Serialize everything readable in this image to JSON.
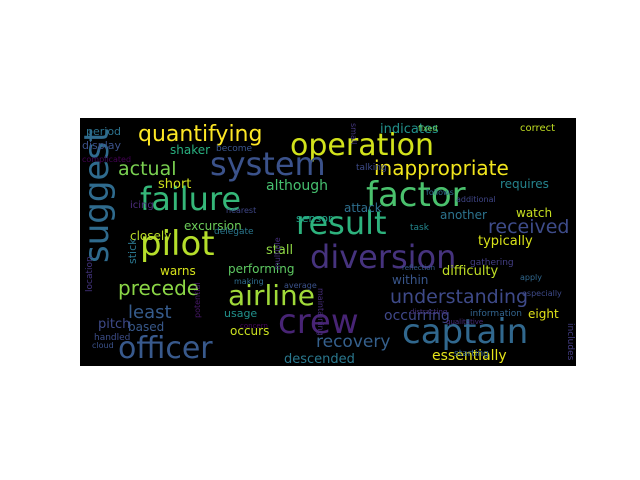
{
  "wordcloud": {
    "background": "#000000",
    "colormap": "viridis",
    "words": [
      {
        "text": "quantifying",
        "color": "#fde725"
      },
      {
        "text": "operation",
        "color": "#d2e21b"
      },
      {
        "text": "system",
        "color": "#3b528b"
      },
      {
        "text": "failure",
        "color": "#35b779"
      },
      {
        "text": "factor",
        "color": "#4ac16d"
      },
      {
        "text": "result",
        "color": "#2db27d"
      },
      {
        "text": "suggest",
        "color": "#2f6b8e"
      },
      {
        "text": "pilot",
        "color": "#b5de2b"
      },
      {
        "text": "diversion",
        "color": "#46337e"
      },
      {
        "text": "airline",
        "color": "#a0da39"
      },
      {
        "text": "crew",
        "color": "#482475"
      },
      {
        "text": "captain",
        "color": "#31688e"
      },
      {
        "text": "officer",
        "color": "#38598c"
      },
      {
        "text": "inappropriate",
        "color": "#f1e51d"
      },
      {
        "text": "understanding",
        "color": "#3e4a89"
      },
      {
        "text": "received",
        "color": "#3e4c8a"
      },
      {
        "text": "precede",
        "color": "#8bd646"
      },
      {
        "text": "actual",
        "color": "#7ad151"
      },
      {
        "text": "least",
        "color": "#365c8d"
      },
      {
        "text": "recovery",
        "color": "#35608d"
      },
      {
        "text": "essentially",
        "color": "#e5e419"
      },
      {
        "text": "descended",
        "color": "#2a788e"
      },
      {
        "text": "occurring",
        "color": "#3f4889"
      },
      {
        "text": "indicates",
        "color": "#21918c"
      },
      {
        "text": "period",
        "color": "#2c728e"
      },
      {
        "text": "display",
        "color": "#3b528b"
      },
      {
        "text": "shaker",
        "color": "#29af7f"
      },
      {
        "text": "short",
        "color": "#d0e11c"
      },
      {
        "text": "although",
        "color": "#46c06f"
      },
      {
        "text": "requires",
        "color": "#25848e"
      },
      {
        "text": "watch",
        "color": "#c8e020"
      },
      {
        "text": "attack",
        "color": "#2e6f8e"
      },
      {
        "text": "sensor",
        "color": "#1fa188"
      },
      {
        "text": "another",
        "color": "#2c738e"
      },
      {
        "text": "typically",
        "color": "#d8e219"
      },
      {
        "text": "stall",
        "color": "#8fd744"
      },
      {
        "text": "difficulty",
        "color": "#c0df25"
      },
      {
        "text": "within",
        "color": "#39568c"
      },
      {
        "text": "warns",
        "color": "#d5e21a"
      },
      {
        "text": "performing",
        "color": "#5ec962"
      },
      {
        "text": "excursion",
        "color": "#6ccd5a"
      },
      {
        "text": "closely",
        "color": "#bade28"
      },
      {
        "text": "stick",
        "color": "#2a768e"
      },
      {
        "text": "pitch",
        "color": "#3e4a89"
      },
      {
        "text": "based",
        "color": "#38598c"
      },
      {
        "text": "occurs",
        "color": "#cae11f"
      },
      {
        "text": "usage",
        "color": "#21918c"
      },
      {
        "text": "eight",
        "color": "#e2e418"
      },
      {
        "text": "correct",
        "color": "#c2df23"
      },
      {
        "text": "icing",
        "color": "#4e2d7e"
      },
      {
        "text": "become",
        "color": "#3a548c"
      },
      {
        "text": "talking",
        "color": "#3e4c8a"
      },
      {
        "text": "small",
        "color": "#453781"
      },
      {
        "text": "fixed",
        "color": "#6ece58"
      },
      {
        "text": "nearest",
        "color": "#3f4788"
      },
      {
        "text": "delegate",
        "color": "#2a778e"
      },
      {
        "text": "task",
        "color": "#24878e"
      },
      {
        "text": "location",
        "color": "#453581"
      },
      {
        "text": "multiple",
        "color": "#46307e"
      },
      {
        "text": "maintaining",
        "color": "#472d7b"
      },
      {
        "text": "information",
        "color": "#32648e"
      },
      {
        "text": "gathering",
        "color": "#433e85"
      },
      {
        "text": "apply",
        "color": "#31688e"
      },
      {
        "text": "especially",
        "color": "#3e4a89"
      },
      {
        "text": "includes",
        "color": "#433d84"
      },
      {
        "text": "starting",
        "color": "#34618d"
      },
      {
        "text": "handled",
        "color": "#3d4e8a"
      },
      {
        "text": "complicated",
        "color": "#440154"
      },
      {
        "text": "additional",
        "color": "#404688"
      },
      {
        "text": "follows",
        "color": "#306a8e"
      },
      {
        "text": "distracting",
        "color": "#46337e"
      },
      {
        "text": "reflection",
        "color": "#365c8d"
      },
      {
        "text": "qualitative",
        "color": "#472c7a"
      },
      {
        "text": "cloud",
        "color": "#3b528b"
      },
      {
        "text": "making",
        "color": "#2f6c8e"
      },
      {
        "text": "potential",
        "color": "#48186a"
      },
      {
        "text": "concern",
        "color": "#46085c"
      },
      {
        "text": "average",
        "color": "#3b528b"
      }
    ]
  }
}
